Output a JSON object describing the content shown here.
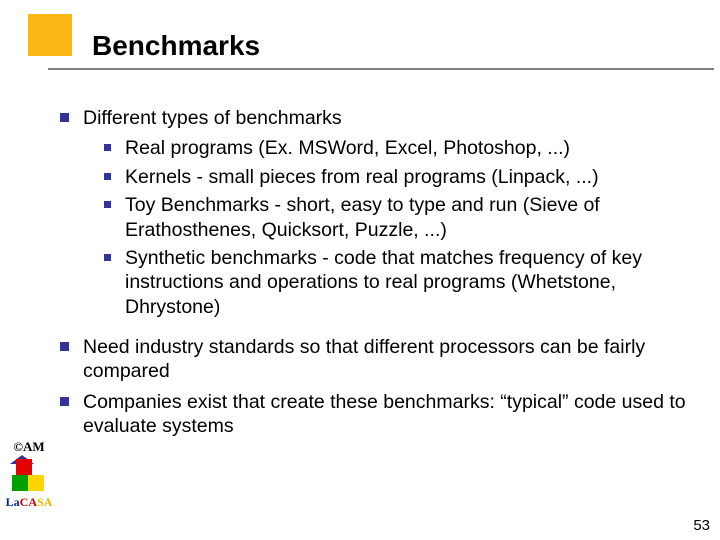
{
  "colors": {
    "accent_block": "#fdb714",
    "bullet_square": "#333399",
    "rule": "#808080",
    "text": "#000000",
    "background": "#ffffff"
  },
  "typography": {
    "title_fontsize_pt": 21,
    "body_fontsize_pt": 15,
    "font_family": "Arial"
  },
  "title": "Benchmarks",
  "point1": "Different types of benchmarks",
  "sub1": "Real programs (Ex. MSWord, Excel, Photoshop, ...)",
  "sub2": "Kernels - small pieces from real programs (Linpack, ...)",
  "sub3": "Toy Benchmarks - short, easy to type and run (Sieve of Erathosthenes, Quicksort, Puzzle, ...)",
  "sub4": "Synthetic benchmarks - code that matches frequency of key instructions and operations to real programs (Whetstone, Dhrystone)",
  "point2": "Need industry standards so that different processors can be fairly compared",
  "point3": "Companies exist that create these benchmarks: “typical” code used to evaluate systems",
  "footer": {
    "am_label": "©AM",
    "lacasa_la": "La",
    "lacasa_ca": "CA",
    "lacasa_sa": "SA"
  },
  "page_number": "53"
}
